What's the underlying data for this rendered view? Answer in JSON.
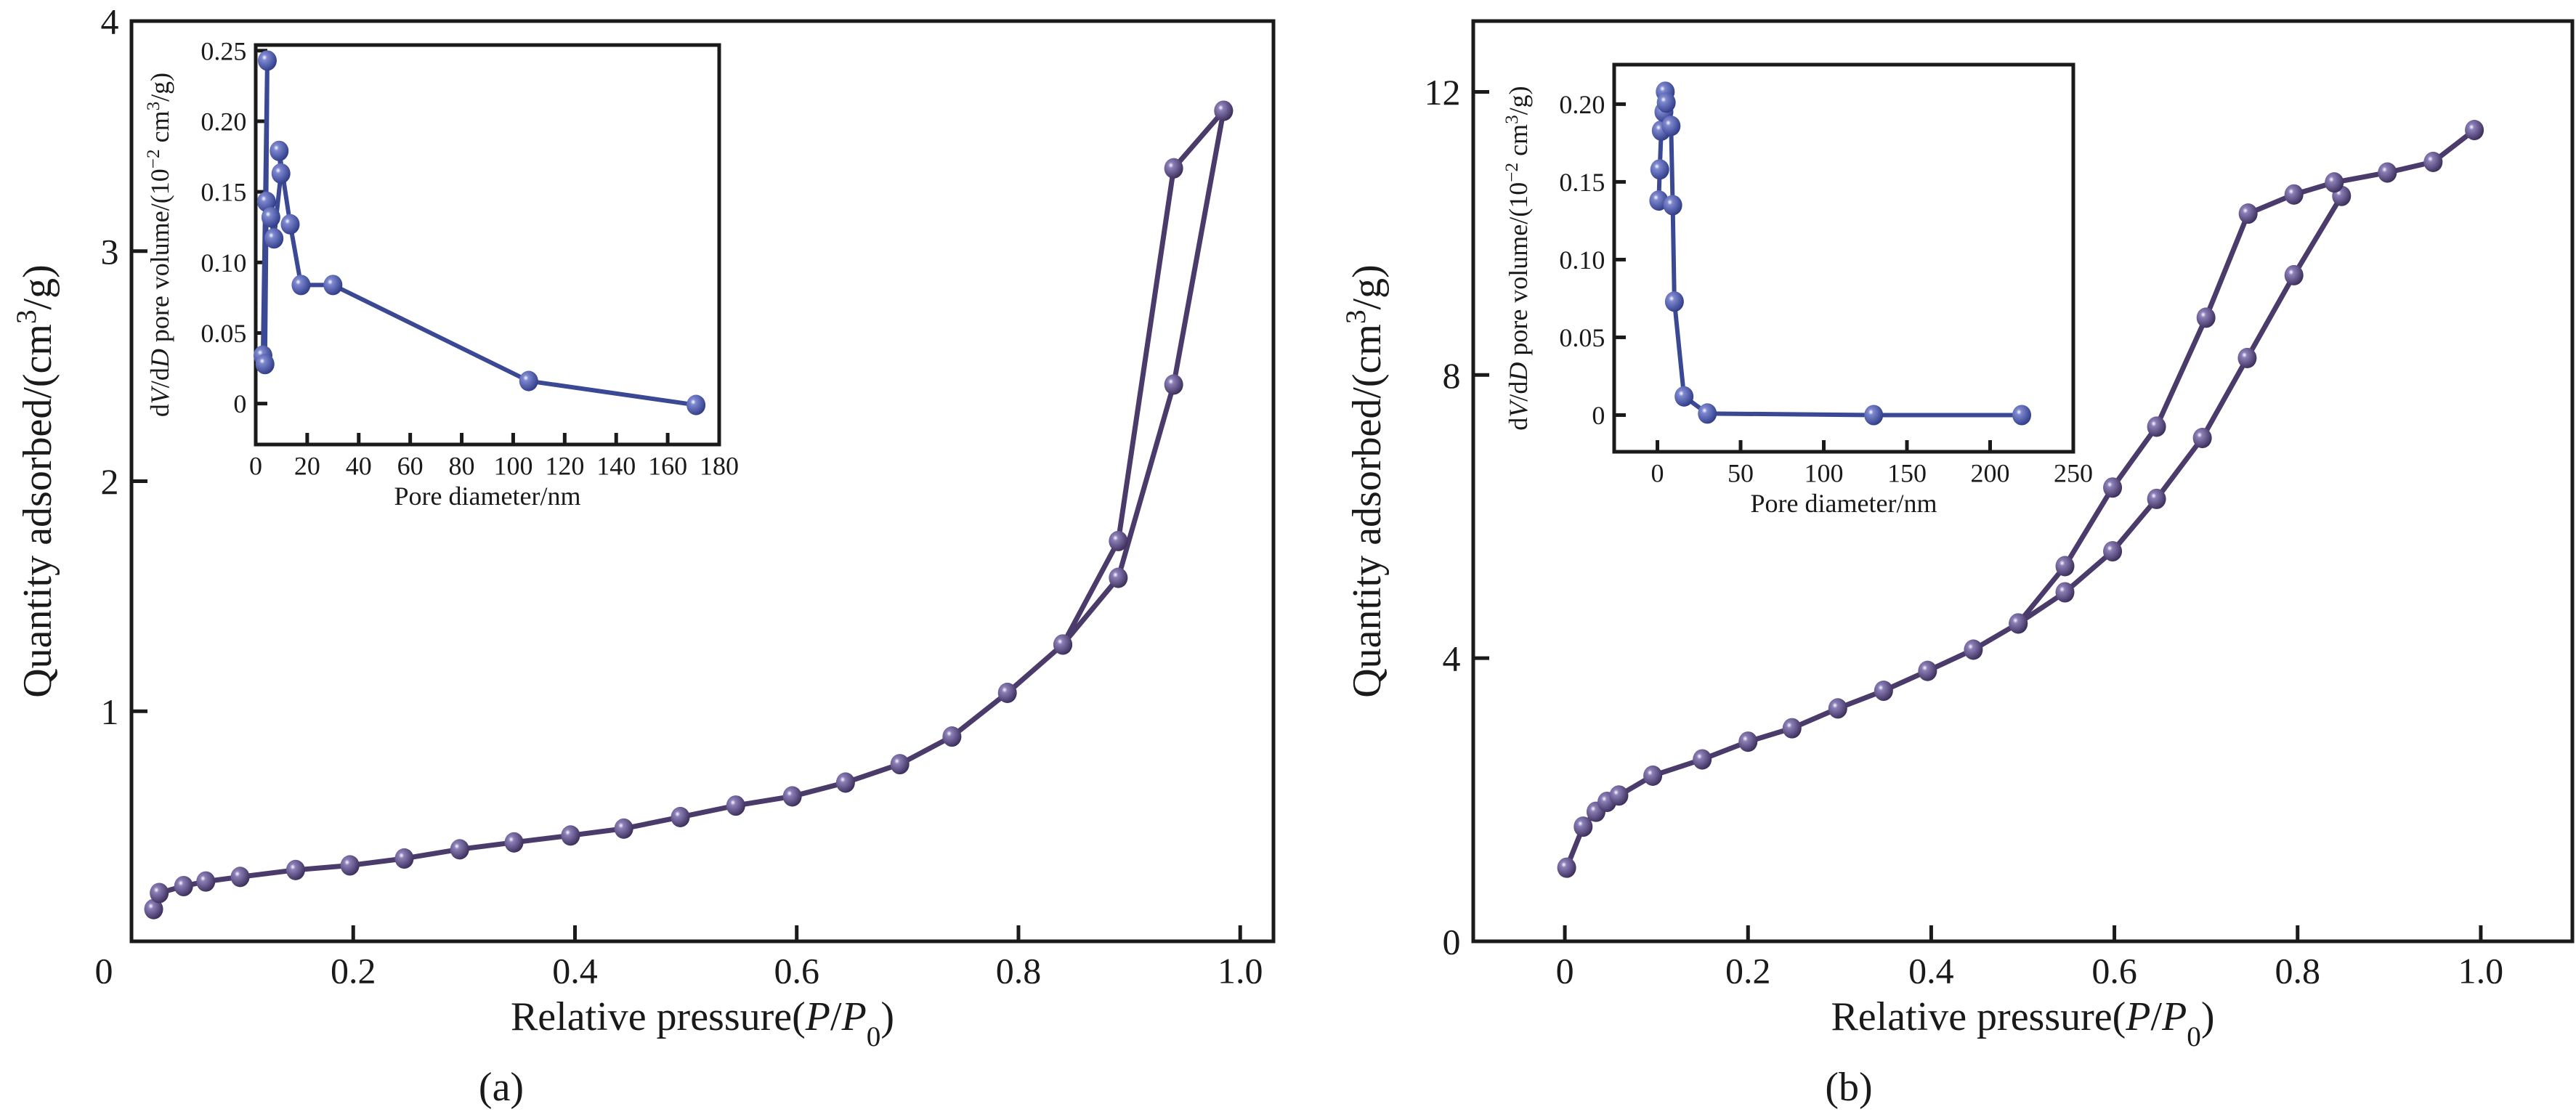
{
  "chart_data": [
    {
      "type": "line",
      "panel": "(a)",
      "xlabel": [
        {
          "t": "Relative pressure("
        },
        {
          "t": "P",
          "i": 1
        },
        {
          "t": "/"
        },
        {
          "t": "P",
          "i": 1
        },
        {
          "t": "0",
          "sub": 1
        },
        {
          "t": ")"
        }
      ],
      "ylabel": [
        {
          "t": "Quantity adsorbed/(cm"
        },
        {
          "t": "3",
          "sup": 1
        },
        {
          "t": "/g)"
        }
      ],
      "xlim": [
        0,
        1.03
      ],
      "ylim": [
        0,
        4
      ],
      "xticks": [
        0,
        0.2,
        0.4,
        0.6,
        0.8,
        1.0
      ],
      "xtick_labels": [
        "0",
        "0.2",
        "0.4",
        "0.6",
        "0.8",
        "1.0"
      ],
      "yticks": [
        1,
        2,
        3,
        4
      ],
      "ytick_labels": [
        "1",
        "2",
        "3",
        "4"
      ],
      "color": "#4a3b6b",
      "series": [
        {
          "x": [
            0.02,
            0.025,
            0.047,
            0.067,
            0.098,
            0.148,
            0.197,
            0.246,
            0.296,
            0.345,
            0.396,
            0.444,
            0.495,
            0.545,
            0.596,
            0.644,
            0.693,
            0.74,
            0.79,
            0.84,
            0.89,
            0.94,
            0.985
          ],
          "y": [
            0.14,
            0.21,
            0.24,
            0.26,
            0.28,
            0.31,
            0.33,
            0.36,
            0.4,
            0.43,
            0.46,
            0.49,
            0.54,
            0.59,
            0.63,
            0.69,
            0.77,
            0.89,
            1.08,
            1.29,
            1.58,
            2.42,
            3.61
          ]
        },
        {
          "x": [
            0.985,
            0.94,
            0.89,
            0.84
          ],
          "y": [
            3.61,
            3.36,
            1.74,
            1.29
          ]
        }
      ],
      "inset": {
        "type": "line",
        "xlabel": [
          {
            "t": "Pore diameter/nm"
          }
        ],
        "ylabel": [
          {
            "t": "d"
          },
          {
            "t": "V",
            "i": 1
          },
          {
            "t": "/d"
          },
          {
            "t": "D",
            "i": 1
          },
          {
            "t": " pore volume/(10"
          },
          {
            "t": "−2",
            "sup": 1
          },
          {
            "t": " cm"
          },
          {
            "t": "3",
            "sup": 1
          },
          {
            "t": "/g)"
          }
        ],
        "xlim": [
          0,
          180
        ],
        "ylim": [
          -0.029,
          0.254
        ],
        "xticks": [
          0,
          20,
          40,
          60,
          80,
          100,
          120,
          140,
          160,
          180
        ],
        "xtick_labels": [
          "0",
          "20",
          "40",
          "60",
          "80",
          "100",
          "120",
          "140",
          "160",
          "180"
        ],
        "yticks": [
          0,
          0.05,
          0.1,
          0.15,
          0.2,
          0.25
        ],
        "ytick_labels": [
          "0",
          "0.05",
          "0.10",
          "0.15",
          "0.20",
          "0.25"
        ],
        "color": "#3b4894",
        "series": [
          {
            "x": [
              2.8,
              4.5,
              3.6,
              4.2,
              5.9,
              7.1,
              9.8,
              9.1,
              13.4,
              17.6,
              30,
              106,
              171
            ],
            "y": [
              0.034,
              0.243,
              0.028,
              0.143,
              0.132,
              0.117,
              0.163,
              0.179,
              0.127,
              0.084,
              0.084,
              0.016,
              -0.001
            ]
          }
        ]
      }
    },
    {
      "type": "line",
      "panel": "(b)",
      "xlabel": [
        {
          "t": "Relative pressure("
        },
        {
          "t": "P",
          "i": 1
        },
        {
          "t": "/"
        },
        {
          "t": "P",
          "i": 1
        },
        {
          "t": "0",
          "sub": 1
        },
        {
          "t": ")"
        }
      ],
      "ylabel": [
        {
          "t": "Quantity adsorbed/(cm"
        },
        {
          "t": "3",
          "sup": 1
        },
        {
          "t": "/g)"
        }
      ],
      "xlim": [
        -0.1,
        1.1
      ],
      "ylim": [
        0,
        13
      ],
      "xticks": [
        0,
        0.2,
        0.4,
        0.6,
        0.8,
        1.0
      ],
      "xtick_labels": [
        "0",
        "0.2",
        "0.4",
        "0.6",
        "0.8",
        "1.0"
      ],
      "yticks": [
        0,
        4,
        8,
        12
      ],
      "ytick_labels": [
        "0",
        "4",
        "8",
        "12"
      ],
      "color": "#4a3b6b",
      "series": [
        {
          "x": [
            0.002,
            0.02,
            0.034,
            0.046,
            0.059,
            0.096,
            0.15,
            0.2,
            0.248,
            0.298,
            0.348,
            0.396,
            0.446,
            0.495,
            0.546,
            0.598,
            0.646,
            0.696,
            0.745,
            0.796,
            0.848
          ],
          "y": [
            1.04,
            1.62,
            1.83,
            1.97,
            2.06,
            2.34,
            2.57,
            2.82,
            3.01,
            3.29,
            3.54,
            3.82,
            4.12,
            4.49,
            4.93,
            5.51,
            6.25,
            7.11,
            8.24,
            9.41,
            10.53
          ]
        },
        {
          "x": [
            0.993,
            0.948,
            0.898,
            0.84,
            0.796,
            0.746,
            0.7,
            0.646,
            0.598,
            0.546,
            0.495
          ],
          "y": [
            11.46,
            11.01,
            10.86,
            10.72,
            10.55,
            10.28,
            8.81,
            7.27,
            6.41,
            5.3,
            4.49
          ]
        }
      ],
      "inset": {
        "type": "line",
        "xlabel": [
          {
            "t": "Pore diameter/nm"
          }
        ],
        "ylabel": [
          {
            "t": "d"
          },
          {
            "t": "V",
            "i": 1
          },
          {
            "t": "/d"
          },
          {
            "t": "D",
            "i": 1
          },
          {
            "t": " pore volume/(10"
          },
          {
            "t": "−2",
            "sup": 1
          },
          {
            "t": " cm"
          },
          {
            "t": "3",
            "sup": 1
          },
          {
            "t": "/g)"
          }
        ],
        "xlim": [
          -26,
          250
        ],
        "ylim": [
          -0.0236,
          0.2254
        ],
        "xticks": [
          0,
          50,
          100,
          150,
          200,
          250
        ],
        "xtick_labels": [
          "0",
          "50",
          "100",
          "150",
          "200",
          "250"
        ],
        "yticks": [
          0,
          0.05,
          0.1,
          0.15,
          0.2
        ],
        "ytick_labels": [
          "0",
          "0.05",
          "0.10",
          "0.15",
          "0.20"
        ],
        "color": "#3b4894",
        "series": [
          {
            "x": [
              0.8,
              1.4,
              2.3,
              3.9,
              4.7,
              5.3,
              8.2,
              9.2,
              10.2,
              16,
              30,
              130,
              219
            ],
            "y": [
              0.138,
              0.158,
              0.183,
              0.195,
              0.208,
              0.201,
              0.186,
              0.135,
              0.073,
              0.012,
              0.001,
              0.0,
              0.0
            ]
          }
        ]
      }
    }
  ]
}
